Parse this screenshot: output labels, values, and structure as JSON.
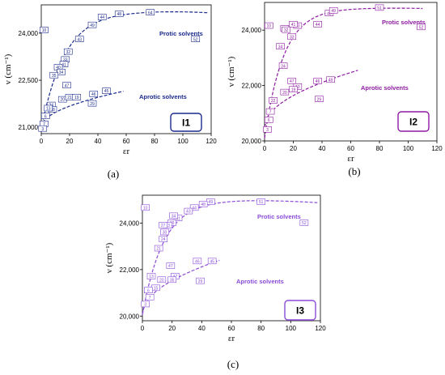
{
  "panels": [
    {
      "panel_label": "(a)",
      "badge": "I1",
      "accent": "#1a2a8c",
      "xlabel": "εr",
      "ylabel": "ν (cm⁻¹)",
      "xticks": [
        "0",
        "20",
        "40",
        "60",
        "80",
        "100",
        "120"
      ],
      "yticks": [
        "21,000",
        "22,500",
        "24,000"
      ],
      "series_labels": [
        "Protic solvents",
        "Aprotic solvents"
      ],
      "points": [
        {
          "id": "10",
          "x": 2,
          "y": 24090
        },
        {
          "id": "48",
          "x": 55,
          "y": 24600
        },
        {
          "id": "44",
          "x": 43,
          "y": 24500
        },
        {
          "id": "49",
          "x": 36,
          "y": 24250
        },
        {
          "id": "43",
          "x": 27,
          "y": 23800
        },
        {
          "id": "32",
          "x": 19,
          "y": 23400
        },
        {
          "id": "33",
          "x": 17,
          "y": 23150
        },
        {
          "id": "41",
          "x": 16,
          "y": 23000
        },
        {
          "id": "40",
          "x": 12,
          "y": 22900
        },
        {
          "id": "34",
          "x": 14,
          "y": 22750
        },
        {
          "id": "35",
          "x": 9,
          "y": 22650
        },
        {
          "id": "64",
          "x": 77,
          "y": 24650
        },
        {
          "id": "52",
          "x": 109,
          "y": 23800
        },
        {
          "id": "47",
          "x": 18,
          "y": 22330
        },
        {
          "id": "46",
          "x": 37,
          "y": 22050
        },
        {
          "id": "45",
          "x": 46,
          "y": 22150
        },
        {
          "id": "29",
          "x": 36,
          "y": 21750
        },
        {
          "id": "20",
          "x": 15,
          "y": 21880
        },
        {
          "id": "21",
          "x": 20,
          "y": 21950
        },
        {
          "id": "19",
          "x": 25,
          "y": 21950
        },
        {
          "id": "24",
          "x": 7,
          "y": 21700
        },
        {
          "id": "38",
          "x": 8,
          "y": 21560
        },
        {
          "id": "13",
          "x": 5,
          "y": 21600
        },
        {
          "id": "6",
          "x": 3,
          "y": 21350
        },
        {
          "id": "7",
          "x": 2,
          "y": 21100
        },
        {
          "id": "3",
          "x": 1,
          "y": 20950
        }
      ]
    },
    {
      "panel_label": "(b)",
      "badge": "I2",
      "accent": "#8c1aa0",
      "xlabel": "εr",
      "ylabel": "ν (cm⁻¹)",
      "xticks": [
        "0",
        "20",
        "40",
        "60",
        "80",
        "100",
        "120"
      ],
      "yticks": [
        "20,000",
        "22,000",
        "24,000"
      ],
      "series_labels": [
        "Protic solvents",
        "Aprotic solvents"
      ],
      "points": [
        {
          "id": "10",
          "x": 3,
          "y": 24150
        },
        {
          "id": "51",
          "x": 80,
          "y": 24800
        },
        {
          "id": "48",
          "x": 45,
          "y": 24600
        },
        {
          "id": "49",
          "x": 48,
          "y": 24700
        },
        {
          "id": "44",
          "x": 37,
          "y": 24200
        },
        {
          "id": "43",
          "x": 23,
          "y": 24150
        },
        {
          "id": "33",
          "x": 19,
          "y": 23750
        },
        {
          "id": "41",
          "x": 20,
          "y": 24200
        },
        {
          "id": "35",
          "x": 14,
          "y": 24050
        },
        {
          "id": "32",
          "x": 15,
          "y": 24000
        },
        {
          "id": "34",
          "x": 11,
          "y": 23400
        },
        {
          "id": "24",
          "x": 13,
          "y": 22700
        },
        {
          "id": "52",
          "x": 109,
          "y": 24100
        },
        {
          "id": "47",
          "x": 19,
          "y": 22150
        },
        {
          "id": "46",
          "x": 37,
          "y": 22150
        },
        {
          "id": "49",
          "x": 46,
          "y": 22200
        },
        {
          "id": "29",
          "x": 38,
          "y": 21500
        },
        {
          "id": "13",
          "x": 23,
          "y": 21950
        },
        {
          "id": "20",
          "x": 14,
          "y": 21750
        },
        {
          "id": "19",
          "x": 20,
          "y": 21850
        },
        {
          "id": "22",
          "x": 6,
          "y": 21450
        },
        {
          "id": "7",
          "x": 4,
          "y": 21050
        },
        {
          "id": "6",
          "x": 3,
          "y": 20750
        },
        {
          "id": "3",
          "x": 2,
          "y": 20400
        }
      ]
    },
    {
      "panel_label": "(c)",
      "badge": "I3",
      "accent": "#8a4bd8",
      "xlabel": "εr",
      "ylabel": "ν (cm⁻¹)",
      "xticks": [
        "0",
        "20",
        "40",
        "60",
        "80",
        "100",
        "120"
      ],
      "yticks": [
        "20,000",
        "22,000",
        "24,000"
      ],
      "series_labels": [
        "Protic solvents",
        "Aprotic solvents"
      ],
      "points": [
        {
          "id": "10",
          "x": 2,
          "y": 24650
        },
        {
          "id": "49",
          "x": 46,
          "y": 24900
        },
        {
          "id": "48",
          "x": 41,
          "y": 24800
        },
        {
          "id": "44",
          "x": 35,
          "y": 24650
        },
        {
          "id": "43",
          "x": 31,
          "y": 24500
        },
        {
          "id": "41",
          "x": 24,
          "y": 24200
        },
        {
          "id": "34",
          "x": 21,
          "y": 24300
        },
        {
          "id": "39",
          "x": 20,
          "y": 24000
        },
        {
          "id": "33",
          "x": 17,
          "y": 23900
        },
        {
          "id": "27",
          "x": 14,
          "y": 23900
        },
        {
          "id": "30",
          "x": 15,
          "y": 23600
        },
        {
          "id": "24",
          "x": 14,
          "y": 23300
        },
        {
          "id": "21",
          "x": 11,
          "y": 22900
        },
        {
          "id": "51",
          "x": 80,
          "y": 24900
        },
        {
          "id": "52",
          "x": 109,
          "y": 24000
        },
        {
          "id": "47",
          "x": 19,
          "y": 22150
        },
        {
          "id": "46",
          "x": 37,
          "y": 22350
        },
        {
          "id": "45",
          "x": 47,
          "y": 22350
        },
        {
          "id": "29",
          "x": 39,
          "y": 21500
        },
        {
          "id": "47",
          "x": 22,
          "y": 21700
        },
        {
          "id": "35",
          "x": 20,
          "y": 21550
        },
        {
          "id": "20",
          "x": 13,
          "y": 21550
        },
        {
          "id": "13",
          "x": 6,
          "y": 21700
        },
        {
          "id": "15",
          "x": 9,
          "y": 21200
        },
        {
          "id": "7",
          "x": 5,
          "y": 20800
        },
        {
          "id": "3",
          "x": 2,
          "y": 20500
        },
        {
          "id": "6",
          "x": 4,
          "y": 21100
        }
      ]
    }
  ],
  "chart_data": [
    {
      "type": "scatter",
      "title": "",
      "xlabel": "εr",
      "ylabel": "ν (cm⁻¹)",
      "xlim": [
        0,
        120
      ],
      "ylim": [
        20800,
        24900
      ],
      "grid": false,
      "series": [
        {
          "name": "Protic solvents",
          "x": [
            2,
            9,
            12,
            14,
            16,
            17,
            19,
            27,
            36,
            43,
            55,
            77,
            109
          ],
          "y": [
            24090,
            22650,
            22900,
            22750,
            23000,
            23150,
            23400,
            23800,
            24250,
            24500,
            24600,
            24650,
            23800
          ]
        },
        {
          "name": "Aprotic solvents",
          "x": [
            1,
            2,
            3,
            5,
            7,
            8,
            15,
            18,
            20,
            25,
            36,
            37,
            46
          ],
          "y": [
            20950,
            21100,
            21350,
            21600,
            21700,
            21560,
            21880,
            22330,
            21950,
            21950,
            21750,
            22050,
            22150
          ]
        }
      ]
    },
    {
      "type": "scatter",
      "title": "",
      "xlabel": "εr",
      "ylabel": "ν (cm⁻¹)",
      "xlim": [
        0,
        120
      ],
      "ylim": [
        20000,
        25000
      ],
      "grid": false,
      "series": [
        {
          "name": "Protic solvents",
          "x": [
            3,
            11,
            13,
            14,
            15,
            19,
            20,
            23,
            37,
            45,
            48,
            80,
            109
          ],
          "y": [
            24150,
            23400,
            22700,
            24050,
            24000,
            23750,
            24200,
            24150,
            24200,
            24600,
            24700,
            24800,
            24100
          ]
        },
        {
          "name": "Aprotic solvents",
          "x": [
            2,
            3,
            4,
            6,
            14,
            19,
            20,
            23,
            37,
            38,
            46
          ],
          "y": [
            20400,
            20750,
            21050,
            21450,
            21750,
            22150,
            21850,
            21950,
            22150,
            21500,
            22200
          ]
        }
      ]
    },
    {
      "type": "scatter",
      "title": "",
      "xlabel": "εr",
      "ylabel": "ν (cm⁻¹)",
      "xlim": [
        0,
        120
      ],
      "ylim": [
        19800,
        25200
      ],
      "grid": false,
      "series": [
        {
          "name": "Protic solvents",
          "x": [
            2,
            11,
            14,
            14,
            15,
            17,
            20,
            21,
            24,
            31,
            35,
            41,
            46,
            80,
            109
          ],
          "y": [
            24650,
            22900,
            23300,
            23900,
            23600,
            23900,
            24000,
            24300,
            24200,
            24500,
            24650,
            24800,
            24900,
            24900,
            24000
          ]
        },
        {
          "name": "Aprotic solvents",
          "x": [
            2,
            4,
            5,
            6,
            9,
            13,
            19,
            20,
            22,
            37,
            39,
            47
          ],
          "y": [
            20500,
            21100,
            20800,
            21700,
            21200,
            21550,
            22150,
            21550,
            21700,
            22350,
            21500,
            22350
          ]
        }
      ]
    }
  ]
}
